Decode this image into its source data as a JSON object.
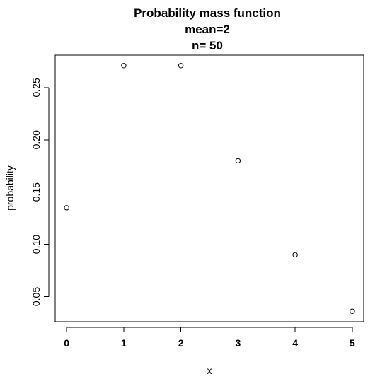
{
  "chart_data": {
    "type": "scatter",
    "title_lines": [
      "Probability mass function",
      "mean=2",
      "n= 50"
    ],
    "xlabel": "x",
    "ylabel": "probability",
    "x": [
      0,
      1,
      2,
      3,
      4,
      5
    ],
    "y": [
      0.135,
      0.271,
      0.271,
      0.18,
      0.09,
      0.036
    ],
    "xlim": [
      -0.2,
      5.2
    ],
    "ylim": [
      0.026,
      0.281
    ],
    "x_ticks": [
      0,
      1,
      2,
      3,
      4,
      5
    ],
    "y_ticks": [
      0.05,
      0.1,
      0.15,
      0.2,
      0.25
    ],
    "x_tick_labels": [
      "0",
      "1",
      "2",
      "3",
      "4",
      "5"
    ],
    "y_tick_labels": [
      "0.05",
      "0.10",
      "0.15",
      "0.20",
      "0.25"
    ],
    "grid": false,
    "marker": "open-circle",
    "colors": {
      "background": "#ffffff",
      "foreground": "#000000"
    }
  }
}
